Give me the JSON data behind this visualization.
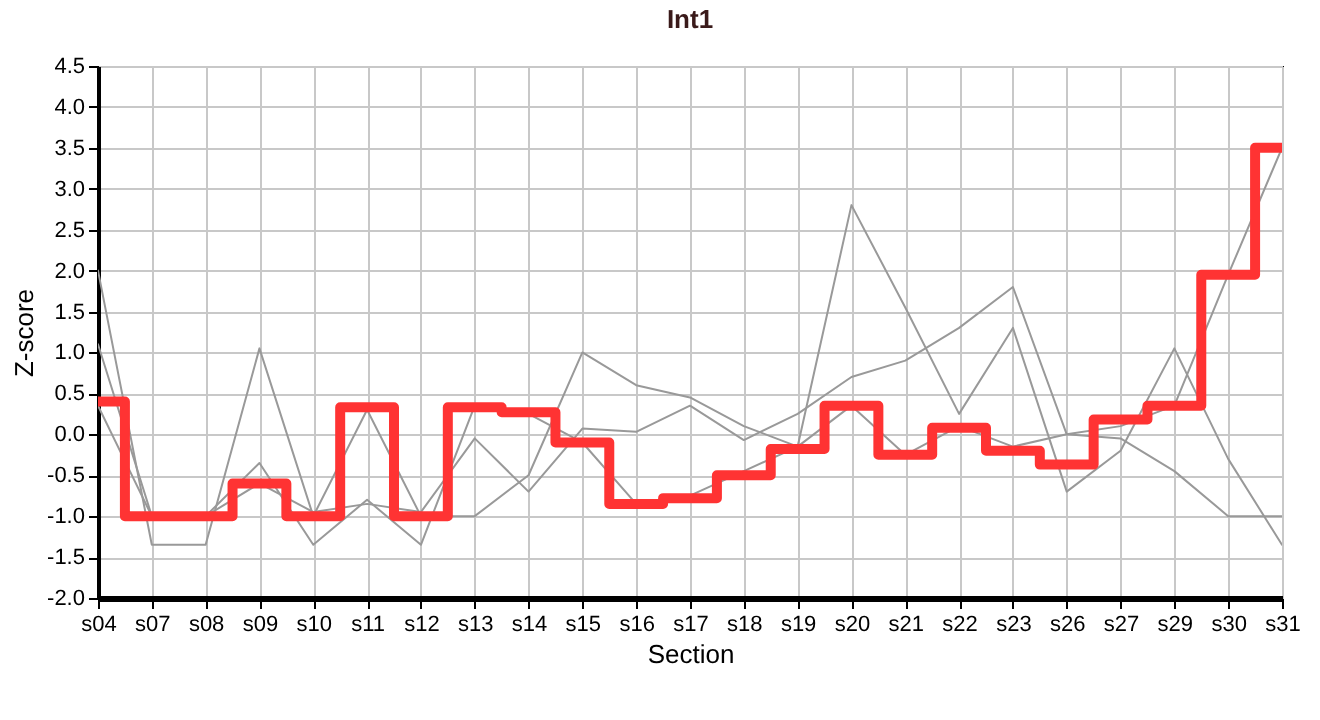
{
  "chart_data": {
    "type": "line",
    "title": "Int1",
    "xlabel": "Section",
    "ylabel": "Z-score",
    "categories": [
      "s04",
      "s07",
      "s08",
      "s09",
      "s10",
      "s11",
      "s12",
      "s13",
      "s14",
      "s15",
      "s16",
      "s17",
      "s18",
      "s19",
      "s20",
      "s21",
      "s22",
      "s23",
      "s26",
      "s27",
      "s29",
      "s30",
      "s31"
    ],
    "series": [
      {
        "color": "#999999",
        "values": [
          2.0,
          -1.35,
          -1.35,
          1.05,
          -1.0,
          0.3,
          -1.0,
          -1.0,
          -0.5,
          1.0,
          0.6,
          0.45,
          0.1,
          -0.15,
          2.8,
          1.55,
          0.25,
          1.3,
          -0.7,
          -0.2,
          1.05,
          -0.3,
          -1.35
        ]
      },
      {
        "color": "#999999",
        "values": [
          1.1,
          -1.0,
          -1.0,
          -0.35,
          -1.35,
          -0.8,
          -1.35,
          0.35,
          0.25,
          -0.1,
          -0.85,
          -0.75,
          -0.45,
          -0.15,
          0.35,
          -0.25,
          0.1,
          -0.15,
          0.0,
          -0.05,
          -0.45,
          -1.0,
          -1.0
        ]
      },
      {
        "color": "#999999",
        "values": [
          0.35,
          -1.0,
          -1.0,
          -0.6,
          -0.95,
          -0.85,
          -0.95,
          -0.05,
          -0.7,
          0.07,
          0.03,
          0.35,
          -0.07,
          0.25,
          0.7,
          0.9,
          1.3,
          1.8,
          0.0,
          0.1,
          0.35,
          1.95,
          3.5
        ]
      },
      {
        "type": "step",
        "color": "#ff3333",
        "values": [
          0.4,
          -1.0,
          -1.0,
          -0.6,
          -1.0,
          0.33,
          -1.0,
          0.33,
          0.27,
          -0.1,
          -0.85,
          -0.78,
          -0.5,
          -0.18,
          0.35,
          -0.25,
          0.08,
          -0.2,
          -0.37,
          0.18,
          0.35,
          1.95,
          3.5
        ]
      }
    ],
    "ylim": [
      -2.0,
      4.5
    ],
    "yticks": [
      {
        "value": -2,
        "label": "-2.0"
      },
      -1.5,
      {
        "value": -1,
        "label": "-1.0"
      },
      -0.5,
      {
        "value": 0,
        "label": "0.0"
      },
      0.5,
      {
        "value": 1,
        "label": "1.0"
      },
      1.5,
      {
        "value": 2,
        "label": "2.0"
      },
      2.5,
      {
        "value": 3,
        "label": "3.0"
      },
      3.5,
      {
        "value": 4,
        "label": "4.0"
      },
      4.5
    ],
    "grid": true,
    "marker": "none",
    "line_style": "solid"
  }
}
